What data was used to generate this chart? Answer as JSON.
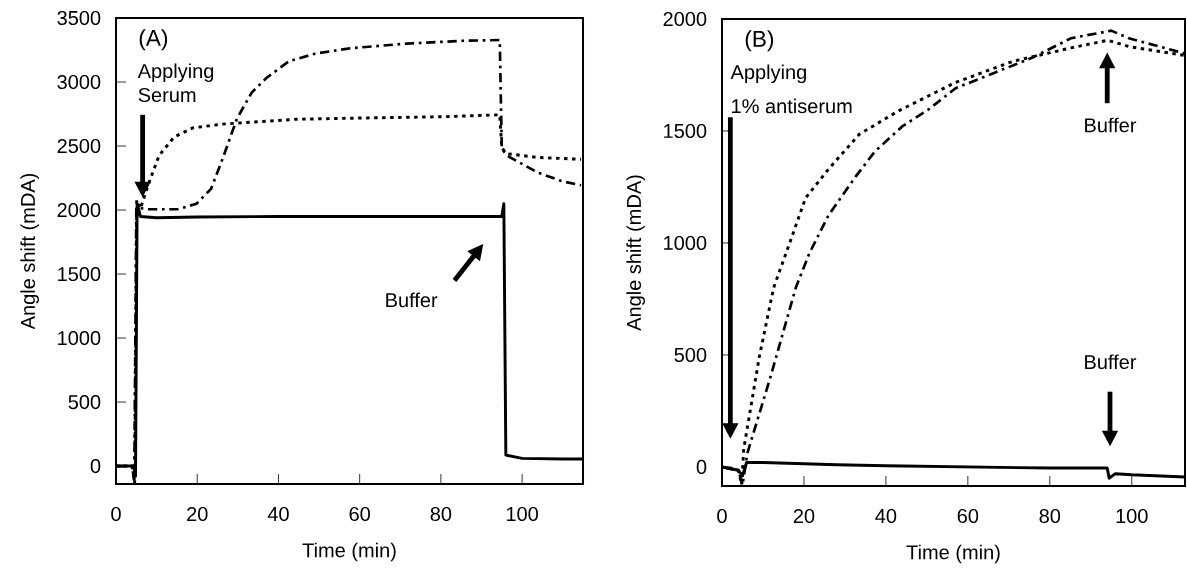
{
  "chart_data": [
    {
      "type": "line",
      "title": "(A)",
      "xlabel": "Time (min)",
      "ylabel": "Angle shift (mDA)",
      "xlim": [
        0,
        115
      ],
      "ylim": [
        -140,
        3500
      ],
      "xticks": [
        0,
        20,
        40,
        60,
        80,
        100
      ],
      "yticks": [
        0,
        500,
        1000,
        1500,
        2000,
        2500,
        3000,
        3500
      ],
      "series": [
        {
          "color": "#000000",
          "line_style": "solid",
          "x": [
            0,
            4,
            4.5,
            4.8,
            5.2,
            6,
            10,
            20,
            40,
            60,
            80,
            95,
            95.5,
            96,
            100,
            110,
            115
          ],
          "values": [
            0,
            0,
            -20,
            -80,
            2050,
            1950,
            1940,
            1945,
            1950,
            1950,
            1950,
            1950,
            2050,
            86,
            60,
            55,
            55
          ]
        },
        {
          "color": "#000000",
          "line_style": "dotted",
          "x": [
            0,
            4,
            4.6,
            5.1,
            6,
            7.9,
            10.6,
            14.3,
            18.9,
            26.2,
            44.4,
            62.6,
            80.8,
            94.5,
            95,
            96.3,
            103.7,
            114.5
          ],
          "values": [
            0,
            0,
            -130,
            2078,
            2010,
            2194,
            2425,
            2570,
            2642,
            2671,
            2709,
            2720,
            2729,
            2744,
            2483,
            2440,
            2411,
            2396
          ]
        },
        {
          "color": "#000000",
          "line_style": "dashdot",
          "x": [
            0,
            4,
            4.5,
            5,
            7.9,
            15.2,
            19.8,
            23.4,
            26.2,
            29.8,
            33.4,
            37.1,
            42.6,
            49,
            58,
            71.7,
            85.4,
            94.5,
            95,
            96.3,
            103.7,
            110,
            114.5
          ],
          "values": [
            0,
            0,
            -130,
            2020,
            2006,
            2006,
            2049,
            2165,
            2396,
            2715,
            2917,
            3033,
            3163,
            3221,
            3265,
            3300,
            3322,
            3328,
            2480,
            2425,
            2295,
            2223,
            2194
          ]
        }
      ],
      "annotations": [
        "Applying Serum",
        "Buffer"
      ]
    },
    {
      "type": "line",
      "title": "(B)",
      "xlabel": "Time (min)",
      "ylabel": "Angle shift (mDA)",
      "xlim": [
        0,
        113
      ],
      "ylim": [
        -85,
        2000
      ],
      "xticks": [
        0,
        20,
        40,
        60,
        80,
        100
      ],
      "yticks": [
        0,
        500,
        1000,
        1500,
        2000
      ],
      "series": [
        {
          "color": "#000000",
          "line_style": "solid",
          "x": [
            0,
            4,
            5,
            6,
            10,
            28,
            40,
            60,
            80,
            94,
            94.5,
            96,
            100,
            113
          ],
          "values": [
            0,
            -15,
            -40,
            20,
            20,
            10,
            5,
            0,
            -5,
            -5,
            -50,
            -30,
            -35,
            -45
          ]
        },
        {
          "color": "#000000",
          "line_style": "dotted",
          "x": [
            0,
            4,
            4.8,
            5.3,
            9.1,
            12.6,
            16.6,
            20.4,
            26,
            33.5,
            42.9,
            52.3,
            57,
            71,
            85.2,
            94.1,
            99.3,
            113
          ],
          "values": [
            0,
            -15,
            -80,
            80,
            491,
            800,
            1004,
            1201,
            1330,
            1485,
            1588,
            1674,
            1717,
            1811,
            1871,
            1905,
            1877,
            1837
          ]
        },
        {
          "color": "#000000",
          "line_style": "dashdot",
          "x": [
            0,
            4,
            5,
            6.2,
            11.9,
            18,
            21.3,
            26,
            32.6,
            37.3,
            43.9,
            50.4,
            57,
            66.4,
            75.8,
            85.2,
            95,
            99.3,
            113
          ],
          "values": [
            0,
            -15,
            -80,
            62,
            406,
            800,
            953,
            1124,
            1296,
            1408,
            1519,
            1596,
            1691,
            1759,
            1828,
            1914,
            1948,
            1914,
            1846
          ]
        }
      ],
      "annotations": [
        "Applying",
        "1% antiserum",
        "Buffer",
        "Buffer"
      ]
    }
  ]
}
